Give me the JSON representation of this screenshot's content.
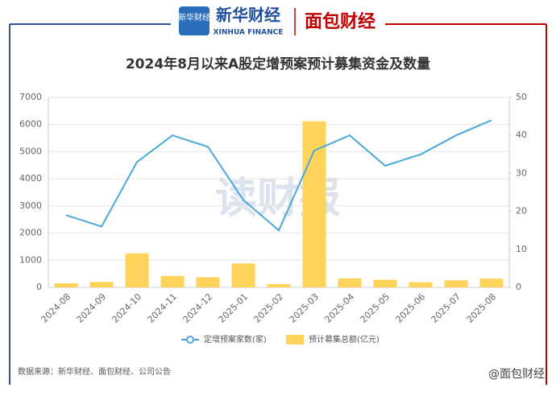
{
  "header": {
    "brand": "新华财经",
    "brand_en": "XINHUA FINANCE",
    "partner": "面包财经"
  },
  "chart_data": {
    "type": "combo",
    "title": "2024年8月以来A股定增预案预计募集资金及数量",
    "categories": [
      "2024-08",
      "2024-09",
      "2024-10",
      "2024-11",
      "2024-12",
      "2025-01",
      "2025-02",
      "2025-03",
      "2025-04",
      "2025-05",
      "2025-06",
      "2025-07",
      "2025-08"
    ],
    "series": [
      {
        "name": "定增预案家数(家)",
        "type": "line",
        "axis": "y2",
        "color": "#4aa8dc",
        "values": [
          19,
          16,
          33,
          40,
          37,
          23,
          15,
          36,
          40,
          32,
          35,
          40,
          44
        ]
      },
      {
        "name": "预计募集总额(亿元)",
        "type": "bar",
        "color": "#ffd45a",
        "values": [
          150,
          200,
          1250,
          420,
          370,
          880,
          120,
          6120,
          330,
          280,
          190,
          260,
          320
        ]
      }
    ],
    "ylim": [
      0,
      7000
    ],
    "yticks": [
      0,
      1000,
      2000,
      3000,
      4000,
      5000,
      6000,
      7000
    ],
    "y2lim": [
      0,
      50
    ],
    "y2ticks": [
      0,
      10,
      20,
      30,
      40,
      50
    ],
    "grid": true,
    "watermark": "读财报"
  },
  "footer": {
    "source": "数据来源：新华财经、面包财经、公司公告",
    "account": "@面包财经"
  }
}
